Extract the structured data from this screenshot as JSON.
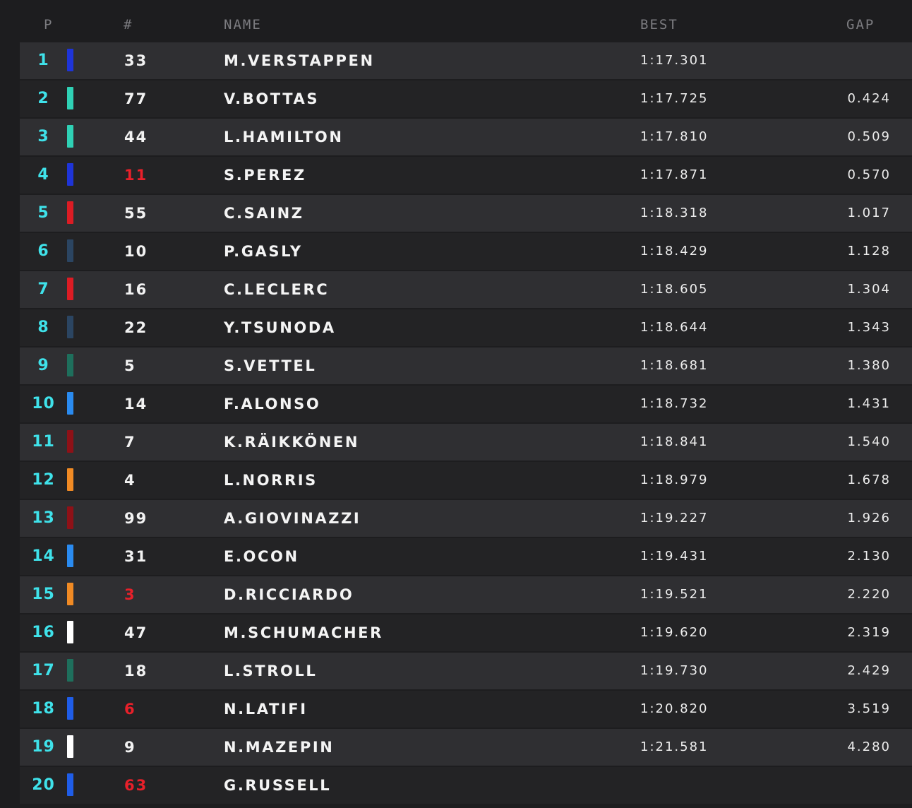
{
  "header": {
    "position": "P",
    "number": "#",
    "name": "NAME",
    "best": "BEST",
    "gap": "GAP"
  },
  "colors": {
    "position_text": "#3fe2ea",
    "number_highlight": "#e8202a",
    "row_light": "#2f2f32",
    "row_dark": "#232325"
  },
  "rows": [
    {
      "pos": "1",
      "team_color": "#1e34d8",
      "number": "33",
      "number_highlight": false,
      "name": "M.VERSTAPPEN",
      "best": "1:17.301",
      "gap": ""
    },
    {
      "pos": "2",
      "team_color": "#2fd1b5",
      "number": "77",
      "number_highlight": false,
      "name": "V.BOTTAS",
      "best": "1:17.725",
      "gap": "0.424"
    },
    {
      "pos": "3",
      "team_color": "#2fd1b5",
      "number": "44",
      "number_highlight": false,
      "name": "L.HAMILTON",
      "best": "1:17.810",
      "gap": "0.509"
    },
    {
      "pos": "4",
      "team_color": "#1e34d8",
      "number": "11",
      "number_highlight": true,
      "name": "S.PEREZ",
      "best": "1:17.871",
      "gap": "0.570"
    },
    {
      "pos": "5",
      "team_color": "#dc1c24",
      "number": "55",
      "number_highlight": false,
      "name": "C.SAINZ",
      "best": "1:18.318",
      "gap": "1.017"
    },
    {
      "pos": "6",
      "team_color": "#2b4562",
      "number": "10",
      "number_highlight": false,
      "name": "P.GASLY",
      "best": "1:18.429",
      "gap": "1.128"
    },
    {
      "pos": "7",
      "team_color": "#dc1c24",
      "number": "16",
      "number_highlight": false,
      "name": "C.LECLERC",
      "best": "1:18.605",
      "gap": "1.304"
    },
    {
      "pos": "8",
      "team_color": "#2b4562",
      "number": "22",
      "number_highlight": false,
      "name": "Y.TSUNODA",
      "best": "1:18.644",
      "gap": "1.343"
    },
    {
      "pos": "9",
      "team_color": "#1e6f5c",
      "number": "5",
      "number_highlight": false,
      "name": "S.VETTEL",
      "best": "1:18.681",
      "gap": "1.380"
    },
    {
      "pos": "10",
      "team_color": "#2a8bf0",
      "number": "14",
      "number_highlight": false,
      "name": "F.ALONSO",
      "best": "1:18.732",
      "gap": "1.431"
    },
    {
      "pos": "11",
      "team_color": "#8e1117",
      "number": "7",
      "number_highlight": false,
      "name": "K.RÄIKKÖNEN",
      "best": "1:18.841",
      "gap": "1.540"
    },
    {
      "pos": "12",
      "team_color": "#f08a24",
      "number": "4",
      "number_highlight": false,
      "name": "L.NORRIS",
      "best": "1:18.979",
      "gap": "1.678"
    },
    {
      "pos": "13",
      "team_color": "#8e1117",
      "number": "99",
      "number_highlight": false,
      "name": "A.GIOVINAZZI",
      "best": "1:19.227",
      "gap": "1.926"
    },
    {
      "pos": "14",
      "team_color": "#2a8bf0",
      "number": "31",
      "number_highlight": false,
      "name": "E.OCON",
      "best": "1:19.431",
      "gap": "2.130"
    },
    {
      "pos": "15",
      "team_color": "#f08a24",
      "number": "3",
      "number_highlight": true,
      "name": "D.RICCIARDO",
      "best": "1:19.521",
      "gap": "2.220"
    },
    {
      "pos": "16",
      "team_color": "#ffffff",
      "number": "47",
      "number_highlight": false,
      "name": "M.SCHUMACHER",
      "best": "1:19.620",
      "gap": "2.319"
    },
    {
      "pos": "17",
      "team_color": "#1e6f5c",
      "number": "18",
      "number_highlight": false,
      "name": "L.STROLL",
      "best": "1:19.730",
      "gap": "2.429"
    },
    {
      "pos": "18",
      "team_color": "#1f5de8",
      "number": "6",
      "number_highlight": true,
      "name": "N.LATIFI",
      "best": "1:20.820",
      "gap": "3.519"
    },
    {
      "pos": "19",
      "team_color": "#ffffff",
      "number": "9",
      "number_highlight": false,
      "name": "N.MAZEPIN",
      "best": "1:21.581",
      "gap": "4.280"
    },
    {
      "pos": "20",
      "team_color": "#1f5de8",
      "number": "63",
      "number_highlight": true,
      "name": "G.RUSSELL",
      "best": "",
      "gap": ""
    }
  ]
}
